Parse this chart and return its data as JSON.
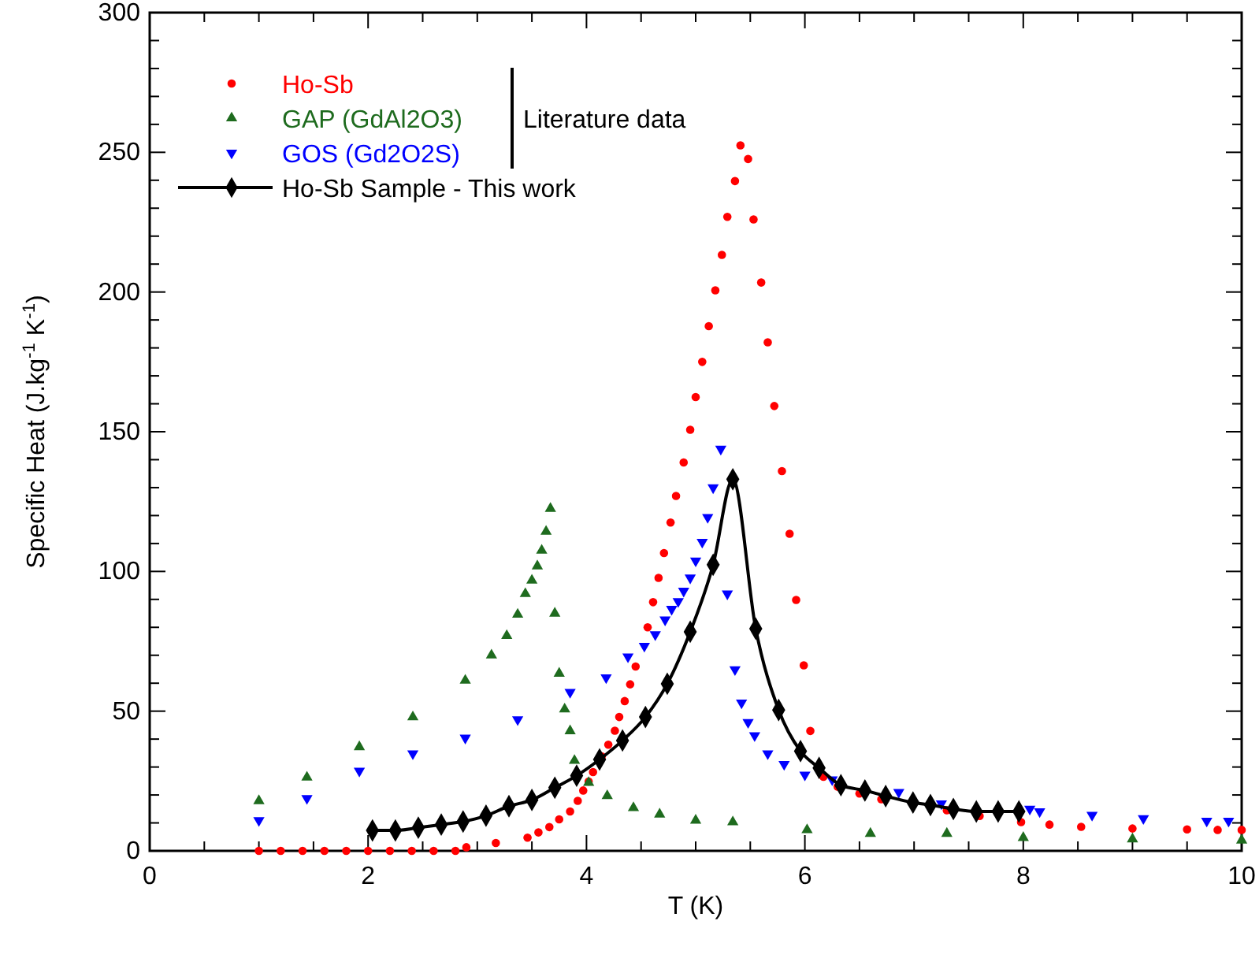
{
  "chart_data": {
    "type": "scatter",
    "xlabel": "T (K)",
    "ylabel": "Specific Heat (J.kg$^{-1}$ K$^{-1}$)",
    "xlim": [
      0,
      10
    ],
    "ylim": [
      0,
      300
    ],
    "xticks": [
      0,
      {
        "value": 0.5,
        "label": null
      },
      {
        "value": 1,
        "label": null
      },
      {
        "value": 1.5,
        "label": null
      },
      2,
      {
        "value": 2.5,
        "label": null
      },
      {
        "value": 3,
        "label": null
      },
      {
        "value": 3.5,
        "label": null
      },
      4,
      {
        "value": 4.5,
        "label": null
      },
      {
        "value": 5,
        "label": null
      },
      {
        "value": 5.5,
        "label": null
      },
      6,
      {
        "value": 6.5,
        "label": null
      },
      {
        "value": 7,
        "label": null
      },
      {
        "value": 7.5,
        "label": null
      },
      8,
      {
        "value": 8.5,
        "label": null
      },
      {
        "value": 9,
        "label": null
      },
      {
        "value": 9.5,
        "label": null
      },
      10
    ],
    "yticks": [
      0,
      {
        "value": 10,
        "label": null
      },
      {
        "value": 20,
        "label": null
      },
      {
        "value": 30,
        "label": null
      },
      {
        "value": 40,
        "label": null
      },
      50,
      {
        "value": 60,
        "label": null
      },
      {
        "value": 70,
        "label": null
      },
      {
        "value": 80,
        "label": null
      },
      {
        "value": 90,
        "label": null
      },
      100,
      {
        "value": 110,
        "label": null
      },
      {
        "value": 120,
        "label": null
      },
      {
        "value": 130,
        "label": null
      },
      {
        "value": 140,
        "label": null
      },
      150,
      {
        "value": 160,
        "label": null
      },
      {
        "value": 170,
        "label": null
      },
      {
        "value": 180,
        "label": null
      },
      {
        "value": 190,
        "label": null
      },
      200,
      {
        "value": 210,
        "label": null
      },
      {
        "value": 220,
        "label": null
      },
      {
        "value": 230,
        "label": null
      },
      {
        "value": 240,
        "label": null
      },
      250,
      {
        "value": 260,
        "label": null
      },
      {
        "value": 270,
        "label": null
      },
      {
        "value": 280,
        "label": null
      },
      {
        "value": 290,
        "label": null
      },
      300
    ],
    "grid": false,
    "legend": "top left",
    "annotations": [
      "Literature data"
    ],
    "series": [
      {
        "name": "Ho-Sb",
        "marker": "circle",
        "color": "#ff0000",
        "x": [
          1,
          1.2,
          1.4,
          1.6,
          1.8,
          2,
          2.2,
          2.4,
          2.6,
          2.8,
          2.9,
          3.17,
          3.46,
          3.56,
          3.66,
          3.75,
          3.85,
          3.92,
          3.97,
          4.02,
          4.06,
          4.14,
          4.2,
          4.26,
          4.3,
          4.35,
          4.4,
          4.45,
          4.56,
          4.61,
          4.66,
          4.71,
          4.77,
          4.82,
          4.89,
          4.95,
          5,
          5.06,
          5.12,
          5.18,
          5.24,
          5.29,
          5.36,
          5.41,
          5.48,
          5.53,
          5.6,
          5.66,
          5.72,
          5.79,
          5.86,
          5.92,
          5.99,
          6.05,
          6.17,
          6.3,
          6.5,
          6.7,
          7.3,
          7.6,
          7.98,
          8.24,
          8.53,
          9,
          9.5,
          9.78,
          10
        ],
        "values": [
          0,
          0,
          0,
          0,
          0,
          0,
          0,
          0,
          0,
          0,
          1.3,
          2.8,
          4.7,
          6.6,
          8.5,
          11.3,
          14.1,
          17.9,
          21.6,
          24.8,
          28.2,
          33.8,
          38,
          43,
          47.9,
          53.6,
          59.6,
          66,
          80,
          89,
          97.7,
          106.6,
          117.5,
          127,
          139,
          150.7,
          162.4,
          175,
          187.8,
          200.6,
          213.3,
          226.9,
          239.7,
          252.5,
          247.6,
          226,
          203.4,
          182,
          159.2,
          135.9,
          113.5,
          89.8,
          66.4,
          42.9,
          26.5,
          23,
          20.5,
          18.5,
          14.5,
          12.5,
          10.3,
          9.4,
          8.6,
          8,
          7.7,
          7.5,
          7.5
        ]
      },
      {
        "name": "GAP (GdAl2O3)",
        "marker": "triangle",
        "color": "#1e6b1e",
        "x": [
          1,
          1.44,
          1.92,
          2.41,
          2.89,
          3.13,
          3.27,
          3.37,
          3.44,
          3.5,
          3.55,
          3.59,
          3.63,
          3.67,
          3.71,
          3.75,
          3.8,
          3.85,
          3.89,
          4.02,
          4.19,
          4.43,
          4.67,
          5,
          5.34,
          6.02,
          6.6,
          7.3,
          8,
          9,
          10
        ],
        "values": [
          17.9,
          26.3,
          37.2,
          47.9,
          61,
          70,
          77,
          84.6,
          92,
          96.8,
          101.9,
          107.5,
          114.3,
          122.5,
          85,
          63.5,
          50.7,
          42.9,
          32.3,
          24.4,
          19.7,
          15.4,
          13.1,
          10.9,
          10.3,
          7.5,
          6.2,
          6.2,
          4.7,
          4.2,
          3.8
        ]
      },
      {
        "name": "GOS (Gd2O2S)",
        "marker": "triangle-down",
        "color": "#0000ff",
        "x": [
          1,
          1.44,
          1.92,
          2.41,
          2.89,
          3.37,
          3.85,
          4.18,
          4.38,
          4.53,
          4.63,
          4.72,
          4.78,
          4.84,
          4.89,
          4.95,
          5,
          5.06,
          5.11,
          5.16,
          5.23,
          5.29,
          5.36,
          5.42,
          5.48,
          5.54,
          5.66,
          5.81,
          6,
          6.25,
          6.86,
          7.25,
          8.06,
          8.15,
          8.63,
          9.1,
          9.68,
          9.88
        ],
        "values": [
          10.9,
          18.8,
          28.6,
          34.8,
          40.4,
          47,
          56.8,
          62,
          69.5,
          73.3,
          77.4,
          82.7,
          86.5,
          89.3,
          93,
          97.7,
          103.8,
          110.5,
          119.4,
          130,
          143.8,
          92,
          64.9,
          53,
          46,
          41.3,
          34.8,
          31,
          27.2,
          25.5,
          21,
          16.9,
          15,
          14.1,
          12.8,
          11.6,
          10.7,
          10.7
        ]
      },
      {
        "name": "Ho-Sb Sample - This work",
        "type": "line",
        "marker": "diamond",
        "line_style": "solid",
        "color": "#000000",
        "x": [
          2.04,
          2.25,
          2.46,
          2.67,
          2.87,
          3.08,
          3.29,
          3.5,
          3.71,
          3.91,
          4.12,
          4.33,
          4.54,
          4.74,
          4.95,
          5.16,
          5.34,
          5.55,
          5.76,
          5.96,
          6.13,
          6.33,
          6.55,
          6.74,
          6.99,
          7.15,
          7.36,
          7.57,
          7.77,
          7.96
        ],
        "values": [
          7.3,
          7.3,
          8.3,
          9.4,
          10.5,
          12.6,
          16,
          18.2,
          22.6,
          26.9,
          32.7,
          39.5,
          47.9,
          59.8,
          78.4,
          102.4,
          133,
          79.5,
          50.4,
          35.7,
          29.7,
          23.5,
          21.6,
          19.6,
          17.3,
          16.4,
          15,
          14.1,
          14.1,
          14.1
        ]
      }
    ]
  }
}
